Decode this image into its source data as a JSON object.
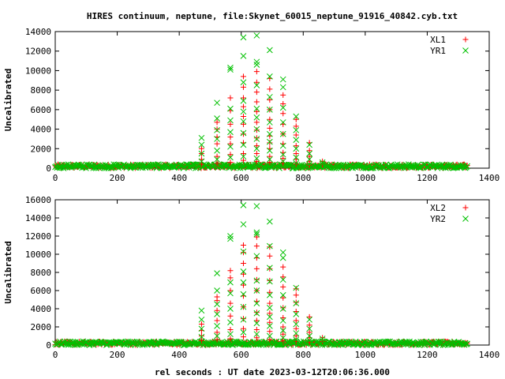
{
  "title": "HIRES continuum, neptune, file:Skynet_60015_neptune_91916_40842.cyb.txt",
  "xlabel": "rel seconds : UT date 2023-03-12T20:06:36.000",
  "colors": {
    "red": "#ff0000",
    "green": "#00c000"
  },
  "chart_data": [
    {
      "type": "scatter",
      "ylabel": "Uncalibrated",
      "xlim": [
        0,
        1400
      ],
      "ylim": [
        0,
        14000
      ],
      "xticks": [
        0,
        200,
        400,
        600,
        800,
        1000,
        1200,
        1400
      ],
      "yticks": [
        0,
        2000,
        4000,
        6000,
        8000,
        10000,
        12000,
        14000
      ],
      "legend_position": "top-right",
      "baseline": {
        "x_range": [
          0,
          1330
        ],
        "y_range": [
          0,
          400
        ]
      },
      "series": [
        {
          "name": "XL1",
          "marker": "+",
          "color": "#ff0000",
          "peaks": [
            {
              "x": 472,
              "y": [
                400,
                900,
                1500,
                2000
              ]
            },
            {
              "x": 522,
              "y": [
                500,
                1200,
                2500,
                3200,
                4000,
                4700
              ]
            },
            {
              "x": 565,
              "y": [
                600,
                1400,
                2500,
                3200,
                4500,
                5900,
                7200
              ]
            },
            {
              "x": 607,
              "y": [
                800,
                1500,
                2600,
                3500,
                4500,
                5300,
                6300,
                7200,
                8300,
                9400
              ]
            },
            {
              "x": 650,
              "y": [
                700,
                1500,
                2300,
                3100,
                3900,
                4700,
                5800,
                6800,
                7800,
                8800,
                9900
              ]
            },
            {
              "x": 692,
              "y": [
                600,
                1200,
                2000,
                2600,
                3300,
                4100,
                5000,
                6000,
                7000,
                8100,
                9200
              ]
            },
            {
              "x": 735,
              "y": [
                500,
                1000,
                1600,
                2500,
                3500,
                4500,
                5600,
                6600,
                7500
              ]
            },
            {
              "x": 777,
              "y": [
                400,
                900,
                1500,
                2300,
                3400,
                4300,
                5000
              ]
            },
            {
              "x": 820,
              "y": [
                300,
                700,
                1200,
                1800,
                2600
              ]
            },
            {
              "x": 862,
              "y": [
                400,
                700
              ]
            }
          ]
        },
        {
          "name": "YR1",
          "marker": "x",
          "color": "#00c000",
          "peaks": [
            {
              "x": 472,
              "y": [
                700,
                1500,
                2400,
                3100
              ]
            },
            {
              "x": 522,
              "y": [
                900,
                1800,
                3000,
                3900,
                5100,
                6700
              ]
            },
            {
              "x": 565,
              "y": [
                1100,
                2200,
                3700,
                4900,
                6100,
                10100,
                10300
              ]
            },
            {
              "x": 607,
              "y": [
                1200,
                2400,
                3600,
                4800,
                5800,
                6900,
                8800,
                11500,
                13400
              ]
            },
            {
              "x": 650,
              "y": [
                1000,
                2000,
                3000,
                4000,
                5200,
                6100,
                8500,
                10900,
                10600,
                13600
              ]
            },
            {
              "x": 692,
              "y": [
                900,
                1800,
                2700,
                3500,
                4700,
                6000,
                7300,
                9400,
                12100
              ]
            },
            {
              "x": 735,
              "y": [
                700,
                1400,
                2300,
                3500,
                4700,
                6200,
                8300,
                9100
              ]
            },
            {
              "x": 777,
              "y": [
                500,
                1100,
                2000,
                2900,
                3900,
                5300
              ]
            },
            {
              "x": 820,
              "y": [
                400,
                900,
                1500,
                2400
              ]
            },
            {
              "x": 862,
              "y": [
                400,
                600
              ]
            }
          ]
        }
      ]
    },
    {
      "type": "scatter",
      "ylabel": "Uncalibrated",
      "xlim": [
        0,
        1400
      ],
      "ylim": [
        0,
        16000
      ],
      "xticks": [
        0,
        200,
        400,
        600,
        800,
        1000,
        1200,
        1400
      ],
      "yticks": [
        0,
        2000,
        4000,
        6000,
        8000,
        10000,
        12000,
        14000,
        16000
      ],
      "legend_position": "top-right",
      "baseline": {
        "x_range": [
          0,
          1330
        ],
        "y_range": [
          0,
          400
        ]
      },
      "series": [
        {
          "name": "XL2",
          "marker": "+",
          "color": "#ff0000",
          "peaks": [
            {
              "x": 472,
              "y": [
                500,
                1000,
                1600,
                2300
              ]
            },
            {
              "x": 522,
              "y": [
                600,
                1400,
                2700,
                3800,
                4900,
                5300
              ]
            },
            {
              "x": 565,
              "y": [
                700,
                1700,
                3200,
                4600,
                6000,
                7400,
                8200
              ]
            },
            {
              "x": 607,
              "y": [
                900,
                1800,
                2900,
                4200,
                5400,
                6600,
                7800,
                9000,
                10200,
                11000
              ]
            },
            {
              "x": 650,
              "y": [
                800,
                1700,
                2700,
                3600,
                4800,
                6000,
                7200,
                8400,
                9600,
                10900,
                11900
              ]
            },
            {
              "x": 692,
              "y": [
                600,
                1500,
                2500,
                3500,
                4600,
                5800,
                7100,
                8400,
                9800,
                10800
              ]
            },
            {
              "x": 735,
              "y": [
                500,
                1200,
                2000,
                3000,
                4100,
                5200,
                6400,
                7500,
                8600
              ]
            },
            {
              "x": 777,
              "y": [
                400,
                1000,
                1800,
                2700,
                3700,
                4700,
                5500,
                6200
              ]
            },
            {
              "x": 820,
              "y": [
                300,
                800,
                1400,
                2200,
                3100
              ]
            },
            {
              "x": 862,
              "y": [
                400,
                800
              ]
            }
          ]
        },
        {
          "name": "YR2",
          "marker": "x",
          "color": "#00c000",
          "peaks": [
            {
              "x": 472,
              "y": [
                900,
                1800,
                2800,
                3800
              ]
            },
            {
              "x": 522,
              "y": [
                1000,
                2100,
                3400,
                4500,
                6000,
                7900
              ]
            },
            {
              "x": 565,
              "y": [
                1200,
                2500,
                4000,
                5700,
                6900,
                11700,
                12000
              ]
            },
            {
              "x": 607,
              "y": [
                1400,
                2800,
                4200,
                5600,
                6900,
                8100,
                10300,
                13300,
                15400
              ]
            },
            {
              "x": 650,
              "y": [
                1200,
                2400,
                3500,
                4600,
                6000,
                7100,
                9800,
                12200,
                12400,
                15300
              ]
            },
            {
              "x": 692,
              "y": [
                1000,
                2100,
                3100,
                4100,
                5500,
                7000,
                8500,
                10900,
                13600
              ]
            },
            {
              "x": 735,
              "y": [
                800,
                1600,
                2700,
                4000,
                5500,
                7200,
                9600,
                10200
              ]
            },
            {
              "x": 777,
              "y": [
                600,
                1300,
                2300,
                3400,
                4600,
                6300
              ]
            },
            {
              "x": 820,
              "y": [
                500,
                1000,
                1800,
                2800
              ]
            },
            {
              "x": 862,
              "y": [
                400,
                700
              ]
            }
          ]
        }
      ]
    }
  ]
}
